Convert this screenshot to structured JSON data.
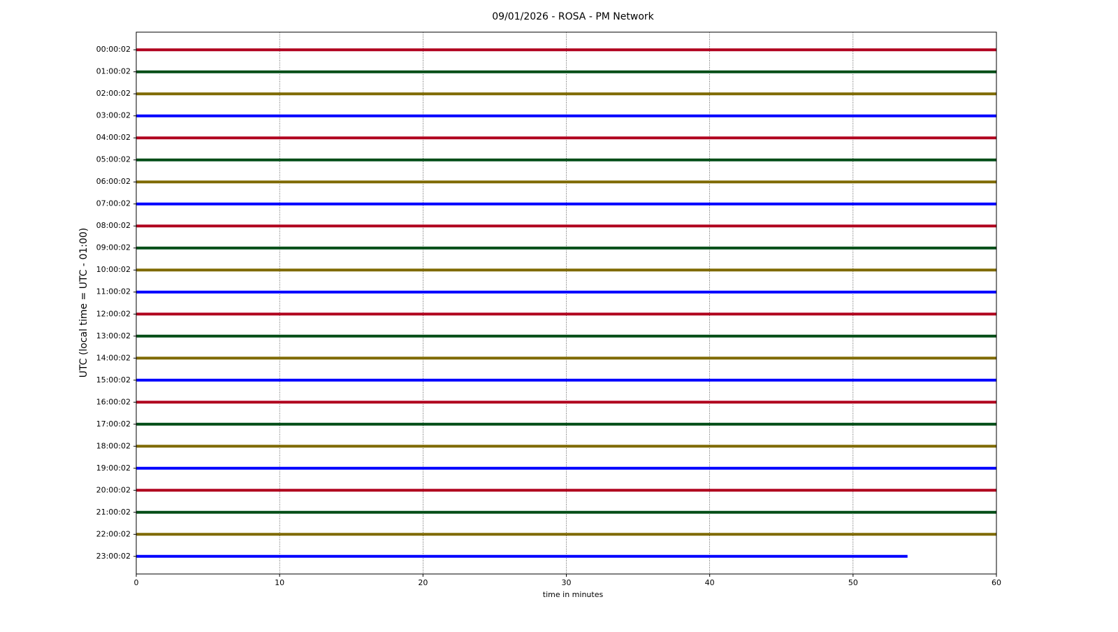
{
  "chart_data": {
    "type": "helicorder",
    "title": "09/01/2026 - ROSA - PM Network",
    "xlabel": "time in minutes",
    "ylabel": "UTC (local time = UTC - 01:00)",
    "xlim": [
      0,
      60
    ],
    "xticks": [
      0,
      10,
      20,
      30,
      40,
      50,
      60
    ],
    "grid": true,
    "colors": [
      "#b0001e",
      "#004d16",
      "#7f6a00",
      "#0000ff"
    ],
    "categories": [
      "00:00:02",
      "01:00:02",
      "02:00:02",
      "03:00:02",
      "04:00:02",
      "05:00:02",
      "06:00:02",
      "07:00:02",
      "08:00:02",
      "09:00:02",
      "10:00:02",
      "11:00:02",
      "12:00:02",
      "13:00:02",
      "14:00:02",
      "15:00:02",
      "16:00:02",
      "17:00:02",
      "18:00:02",
      "19:00:02",
      "20:00:02",
      "21:00:02",
      "22:00:02",
      "23:00:02"
    ],
    "ends": [
      60,
      60,
      60,
      60,
      60,
      60,
      60,
      60,
      60,
      60,
      60,
      60,
      60,
      60,
      60,
      60,
      60,
      60,
      60,
      60,
      60,
      60,
      60,
      53.8
    ]
  }
}
